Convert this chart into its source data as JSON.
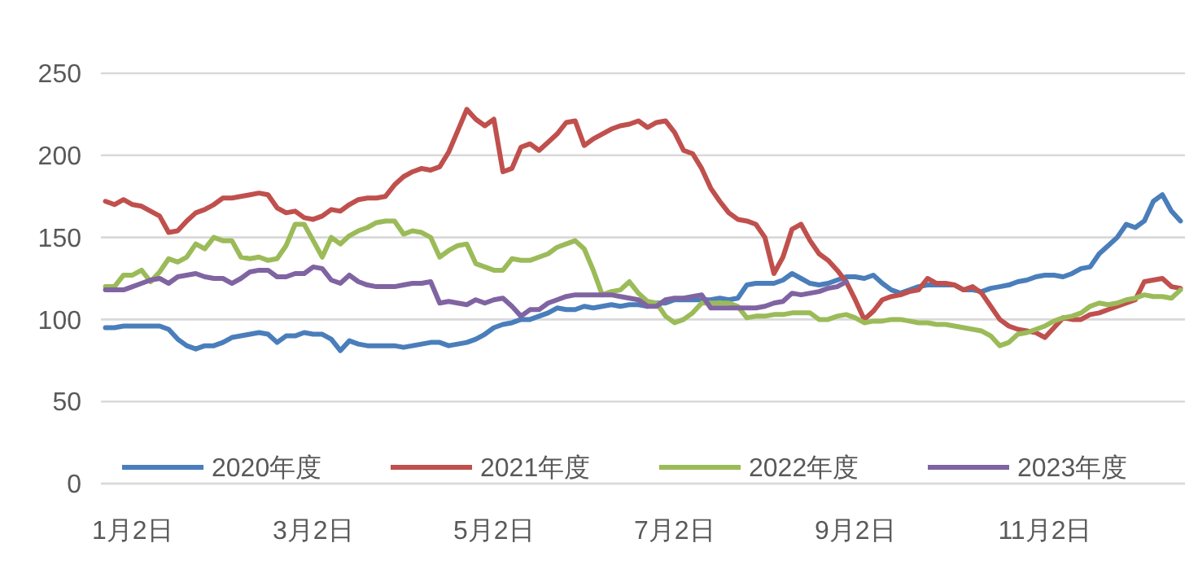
{
  "chart_data": {
    "type": "line",
    "categories": [
      null,
      null,
      null,
      "1月2日",
      null,
      null,
      null,
      null,
      null,
      null,
      null,
      null,
      null,
      null,
      null,
      null,
      null,
      null,
      null,
      null,
      null,
      null,
      null,
      "3月2日",
      null,
      null,
      null,
      null,
      null,
      null,
      null,
      null,
      null,
      null,
      null,
      null,
      null,
      null,
      null,
      null,
      null,
      null,
      null,
      "5月2日",
      null,
      null,
      null,
      null,
      null,
      null,
      null,
      null,
      null,
      null,
      null,
      null,
      null,
      null,
      null,
      null,
      null,
      null,
      null,
      "7月2日",
      null,
      null,
      null,
      null,
      null,
      null,
      null,
      null,
      null,
      null,
      null,
      null,
      null,
      null,
      null,
      null,
      null,
      null,
      null,
      "9月2日",
      null,
      null,
      null,
      null,
      null,
      null,
      null,
      null,
      null,
      null,
      null,
      null,
      null,
      null,
      null,
      null,
      null,
      null,
      null,
      null,
      "11月2日",
      null,
      null,
      null,
      null,
      null,
      null,
      null,
      null,
      null,
      null,
      null,
      null,
      null,
      null,
      null
    ],
    "series": [
      {
        "name": "2020年度",
        "color": "#4a7ebb",
        "values": [
          95,
          95,
          96,
          96,
          96,
          96,
          96,
          94,
          88,
          84,
          82,
          84,
          84,
          86,
          89,
          90,
          91,
          92,
          91,
          86,
          90,
          90,
          92,
          91,
          91,
          88,
          81,
          87,
          85,
          84,
          84,
          84,
          84,
          83,
          84,
          85,
          86,
          86,
          84,
          85,
          86,
          88,
          91,
          95,
          97,
          98,
          100,
          100,
          102,
          104,
          107,
          106,
          106,
          108,
          107,
          108,
          109,
          108,
          109,
          109,
          108,
          110,
          110,
          112,
          112,
          112,
          112,
          112,
          113,
          112,
          113,
          121,
          122,
          122,
          122,
          124,
          128,
          125,
          122,
          121,
          122,
          124,
          126,
          126,
          125,
          127,
          122,
          118,
          116,
          118,
          120,
          121,
          121,
          121,
          121,
          118,
          118,
          117,
          119,
          120,
          121,
          123,
          124,
          126,
          127,
          127,
          126,
          128,
          131,
          132,
          140,
          145,
          150,
          158,
          156,
          160,
          172,
          176,
          166,
          160
        ]
      },
      {
        "name": "2021年度",
        "color": "#c0504d",
        "values": [
          172,
          170,
          173,
          170,
          169,
          166,
          163,
          153,
          154,
          160,
          165,
          167,
          170,
          174,
          174,
          175,
          176,
          177,
          176,
          168,
          165,
          166,
          162,
          161,
          163,
          167,
          166,
          170,
          173,
          174,
          174,
          175,
          182,
          187,
          190,
          192,
          191,
          193,
          202,
          215,
          228,
          222,
          218,
          222,
          190,
          192,
          205,
          207,
          203,
          208,
          213,
          220,
          221,
          206,
          210,
          213,
          216,
          218,
          219,
          221,
          217,
          220,
          221,
          214,
          203,
          201,
          192,
          180,
          172,
          165,
          161,
          160,
          158,
          150,
          128,
          138,
          155,
          158,
          148,
          140,
          136,
          130,
          123,
          112,
          100,
          105,
          112,
          114,
          115,
          117,
          118,
          125,
          122,
          122,
          121,
          118,
          120,
          116,
          108,
          100,
          96,
          94,
          93,
          92,
          89,
          95,
          101,
          100,
          100,
          103,
          104,
          106,
          108,
          110,
          112,
          123,
          124,
          125,
          120,
          119
        ]
      },
      {
        "name": "2022年度",
        "color": "#9bbb59",
        "values": [
          120,
          120,
          127,
          127,
          130,
          123,
          129,
          137,
          135,
          138,
          146,
          143,
          150,
          148,
          148,
          138,
          137,
          138,
          136,
          137,
          145,
          158,
          158,
          148,
          138,
          150,
          146,
          151,
          154,
          156,
          159,
          160,
          160,
          152,
          154,
          153,
          150,
          138,
          142,
          145,
          146,
          134,
          132,
          130,
          130,
          137,
          136,
          136,
          138,
          140,
          144,
          146,
          148,
          143,
          130,
          115,
          117,
          118,
          123,
          116,
          111,
          110,
          102,
          98,
          100,
          104,
          110,
          110,
          110,
          110,
          108,
          101,
          102,
          102,
          103,
          103,
          104,
          104,
          104,
          100,
          100,
          102,
          103,
          101,
          98,
          99,
          99,
          100,
          100,
          99,
          98,
          98,
          97,
          97,
          96,
          95,
          94,
          93,
          90,
          84,
          86,
          91,
          92,
          94,
          96,
          99,
          101,
          102,
          104,
          108,
          110,
          109,
          110,
          112,
          113,
          115,
          114,
          114,
          113,
          118
        ]
      },
      {
        "name": "2023年度",
        "color": "#8064a2",
        "values": [
          118,
          118,
          118,
          120,
          122,
          124,
          125,
          122,
          126,
          127,
          128,
          126,
          125,
          125,
          122,
          125,
          129,
          130,
          130,
          126,
          126,
          128,
          128,
          132,
          131,
          124,
          122,
          127,
          123,
          121,
          120,
          120,
          120,
          121,
          122,
          122,
          123,
          110,
          111,
          110,
          109,
          112,
          110,
          112,
          113,
          108,
          102,
          106,
          106,
          110,
          112,
          114,
          115,
          115,
          115,
          115,
          115,
          114,
          113,
          112,
          108,
          108,
          112,
          113,
          113,
          114,
          115,
          107,
          107,
          107,
          107,
          107,
          107,
          108,
          110,
          111,
          116,
          115,
          116,
          117,
          119,
          120,
          123,
          null,
          null,
          null,
          null,
          null,
          null,
          null,
          null,
          null,
          null,
          null,
          null,
          null,
          null,
          null,
          null,
          null,
          null,
          null,
          null,
          null,
          null,
          null,
          null,
          null,
          null,
          null,
          null,
          null,
          null,
          null,
          null,
          null,
          null,
          null,
          null,
          null
        ]
      }
    ],
    "ylim": [
      0,
      250
    ],
    "yticks": [
      0,
      50,
      100,
      150,
      200,
      250
    ],
    "grid": "y",
    "legend": "bottom"
  }
}
